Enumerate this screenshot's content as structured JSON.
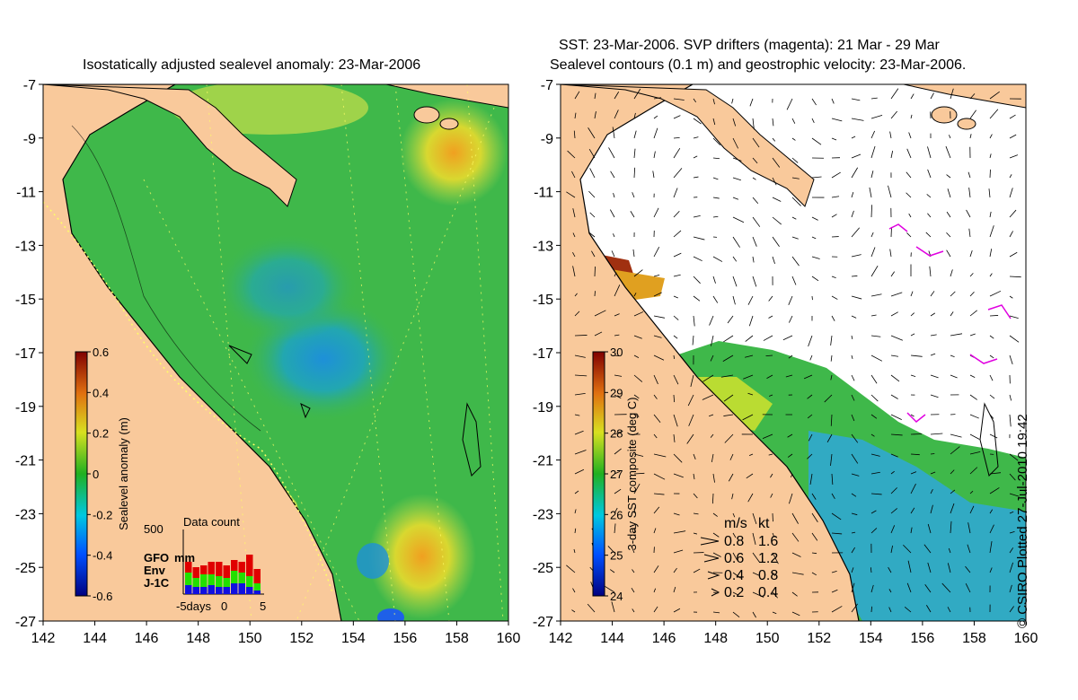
{
  "titles": {
    "left": "Isostatically adjusted sealevel anomaly: 23-Mar-2006",
    "right_line1": "SST: 23-Mar-2006. SVP drifters (magenta): 21 Mar - 29 Mar",
    "right_line2": "Sealevel contours (0.1 m) and geostrophic velocity: 23-Mar-2006."
  },
  "axes": {
    "lat_ticks": [
      "-7",
      "-9",
      "-11",
      "-13",
      "-15",
      "-17",
      "-19",
      "-21",
      "-23",
      "-25",
      "-27"
    ],
    "lon_ticks": [
      "142",
      "144",
      "146",
      "148",
      "150",
      "152",
      "154",
      "156",
      "158",
      "160"
    ],
    "lat_range": [
      -27,
      -7
    ],
    "lon_range": [
      142,
      160
    ]
  },
  "colorbars": {
    "sealevel": {
      "label": "Sealevel anomaly (m)",
      "ticks": [
        "0.6",
        "0.4",
        "0.2",
        "0",
        "-0.2",
        "-0.4",
        "-0.6"
      ],
      "range": [
        -0.6,
        0.6
      ]
    },
    "sst": {
      "label": "3-day SST composite (deg C)",
      "ticks": [
        "30",
        "29",
        "28",
        "27",
        "26",
        "25",
        "24"
      ],
      "range": [
        24,
        30
      ]
    }
  },
  "data_count": {
    "title": "Data count",
    "ymax_label": "500",
    "xlabels": [
      "-5days",
      "0",
      "5"
    ],
    "legend": [
      {
        "name": "GFO",
        "color": "#e00000"
      },
      {
        "name": "Env",
        "color": "#22e000"
      },
      {
        "name": "J-1C",
        "color": "#1010e0"
      }
    ],
    "unit": "mm",
    "bars": [
      {
        "gfo": 0.3,
        "env": 0.35,
        "j1": 0.25
      },
      {
        "gfo": 0.3,
        "env": 0.25,
        "j1": 0.2
      },
      {
        "gfo": 0.25,
        "env": 0.35,
        "j1": 0.2
      },
      {
        "gfo": 0.35,
        "env": 0.3,
        "j1": 0.25
      },
      {
        "gfo": 0.4,
        "env": 0.3,
        "j1": 0.2
      },
      {
        "gfo": 0.35,
        "env": 0.25,
        "j1": 0.2
      },
      {
        "gfo": 0.3,
        "env": 0.35,
        "j1": 0.3
      },
      {
        "gfo": 0.3,
        "env": 0.3,
        "j1": 0.3
      },
      {
        "gfo": 0.6,
        "env": 0.3,
        "j1": 0.2
      },
      {
        "gfo": 0.4,
        "env": 0.2,
        "j1": 0.1
      }
    ]
  },
  "velocity_legend": {
    "headers": [
      "m/s",
      "kt"
    ],
    "rows": [
      {
        "ms": "0.8",
        "kt": "1.6",
        "frac": 1.0
      },
      {
        "ms": "0.6",
        "kt": "1.2",
        "frac": 0.75
      },
      {
        "ms": "0.4",
        "kt": "0.8",
        "frac": 0.5
      },
      {
        "ms": "0.2",
        "kt": "0.4",
        "frac": 0.25
      }
    ]
  },
  "credit": "© CSIRO Plotted 27-Jul-2010 19:42",
  "colors": {
    "land": "#f9c99b",
    "sea_mid": "#3fb84a",
    "sea_cool": "#22a79a",
    "sea_warm": "#b8d94a",
    "drifter": "#e000e0"
  }
}
